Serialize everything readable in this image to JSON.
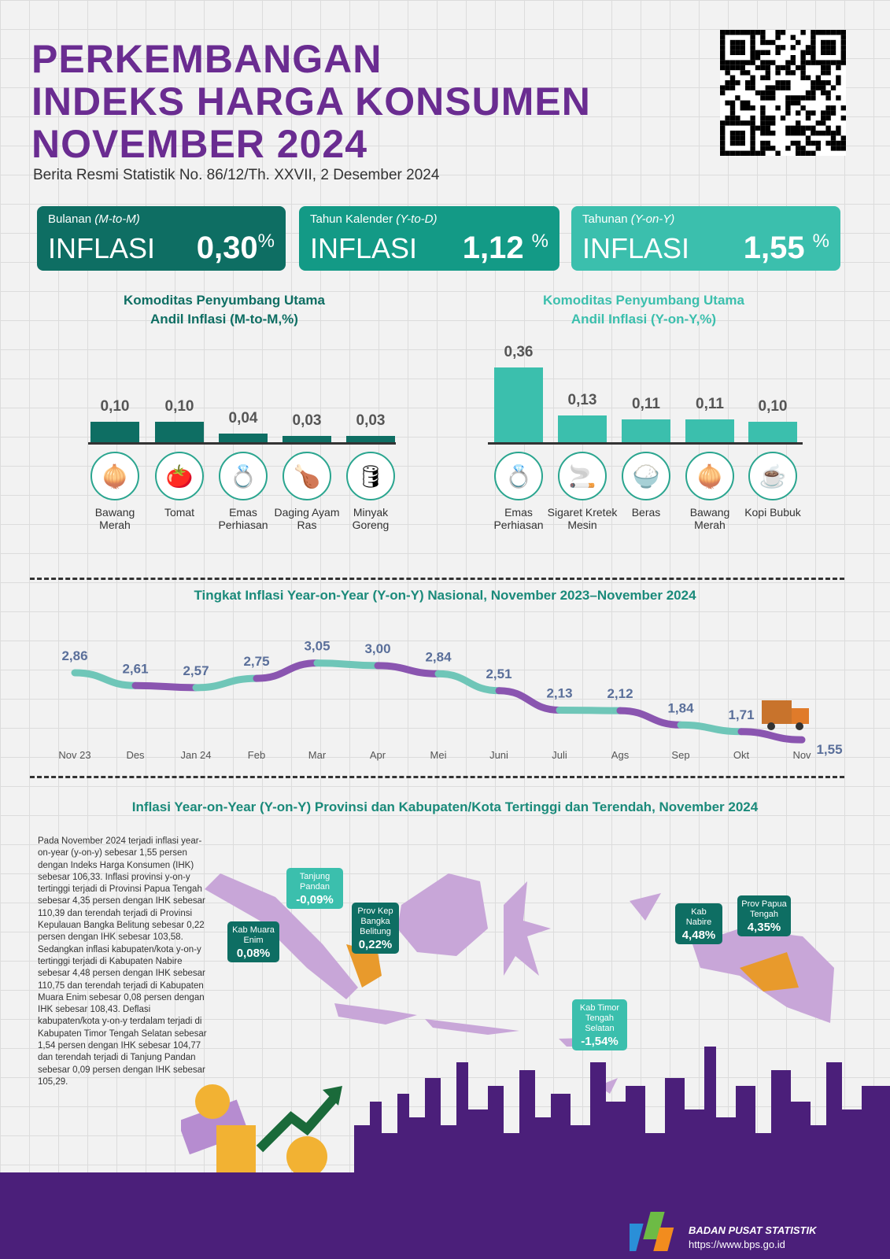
{
  "header": {
    "title_lines": [
      "PERKEMBANGAN",
      "INDEKS HARGA KONSUMEN",
      "NOVEMBER 2024"
    ],
    "subtitle": "Berita Resmi Statistik No. 86/12/Th. XXVII, 2 Desember 2024"
  },
  "cards": [
    {
      "label": "Bulanan",
      "label_italic": "(M-to-M)",
      "word": "INFLASI",
      "value": "0,30",
      "unit": "%",
      "color": "#0e6e63"
    },
    {
      "label": "Tahun Kalender",
      "label_italic": "(Y-to-D)",
      "word": "INFLASI",
      "value": "1,12",
      "unit": "%",
      "color": "#139a86"
    },
    {
      "label": "Tahunan",
      "label_italic": "(Y-on-Y)",
      "word": "INFLASI",
      "value": "1,55",
      "unit": "%",
      "color": "#3bbfad"
    }
  ],
  "chart_data": [
    {
      "type": "bar",
      "title": "Komoditas Penyumbang Utama",
      "title2": "Andil Inflasi (M-to-M,%)",
      "categories": [
        "Bawang Merah",
        "Tomat",
        "Emas Perhiasan",
        "Daging Ayam Ras",
        "Minyak Goreng"
      ],
      "labels": [
        "0,10",
        "0,10",
        "0,04",
        "0,03",
        "0,03"
      ],
      "values": [
        0.1,
        0.1,
        0.04,
        0.03,
        0.03
      ],
      "color": "#0e6e63",
      "icons": [
        "onion-icon",
        "tomato-icon",
        "jewelry-icon",
        "chicken-icon",
        "oil-icon"
      ]
    },
    {
      "type": "bar",
      "title": "Komoditas Penyumbang Utama",
      "title2": "Andil Inflasi (Y-on-Y,%)",
      "categories": [
        "Emas Perhiasan",
        "Sigaret Kretek Mesin",
        "Beras",
        "Bawang Merah",
        "Kopi Bubuk"
      ],
      "labels": [
        "0,36",
        "0,13",
        "0,11",
        "0,11",
        "0,10"
      ],
      "values": [
        0.36,
        0.13,
        0.11,
        0.11,
        0.1
      ],
      "color": "#3bbfad",
      "icons": [
        "jewelry-icon",
        "cigarette-icon",
        "rice-icon",
        "onion-icon",
        "coffee-icon"
      ]
    },
    {
      "type": "line",
      "title": "Tingkat Inflasi Year-on-Year (Y-on-Y) Nasional, November 2023–November 2024",
      "categories": [
        "Nov 23",
        "Des",
        "Jan 24",
        "Feb",
        "Mar",
        "Apr",
        "Mei",
        "Juni",
        "Juli",
        "Ags",
        "Sep",
        "Okt",
        "Nov"
      ],
      "labels": [
        "2,86",
        "2,61",
        "2,57",
        "2,75",
        "3,05",
        "3,00",
        "2,84",
        "2,51",
        "2,13",
        "2,12",
        "1,84",
        "1,71",
        "1,55"
      ],
      "values": [
        2.86,
        2.61,
        2.57,
        2.75,
        3.05,
        3.0,
        2.84,
        2.51,
        2.13,
        2.12,
        1.84,
        1.71,
        1.55
      ],
      "colors": [
        "#6fc6b8",
        "#8a55b0"
      ]
    }
  ],
  "map": {
    "title": "Inflasi Year-on-Year (Y-on-Y) Provinsi dan Kabupaten/Kota Tertinggi dan Terendah, November 2024",
    "paragraph": "Pada November 2024 terjadi inflasi year-on-year (y-on-y) sebesar 1,55 persen dengan Indeks Harga Konsumen (IHK) sebesar 106,33. Inflasi provinsi y-on-y tertinggi terjadi di Provinsi Papua Tengah sebesar 4,35 persen dengan IHK sebesar 110,39 dan terendah terjadi di Provinsi Kepulauan Bangka Belitung sebesar 0,22 persen dengan IHK sebesar 103,58. Sedangkan inflasi kabupaten/kota y-on-y tertinggi terjadi di Kabupaten Nabire sebesar 4,48 persen dengan IHK sebesar 110,75 dan terendah terjadi di Kabupaten Muara Enim sebesar 0,08 persen dengan IHK sebesar 108,43. Deflasi kabupaten/kota y-on-y terdalam terjadi di Kabupaten Timor Tengah Selatan sebesar 1,54 persen dengan IHK sebesar 104,77 dan terendah terjadi di Tanjung Pandan sebesar 0,09 persen dengan IHK sebesar 105,29.",
    "callouts": [
      {
        "name": "Tanjung Pandan",
        "value": "-0,09%"
      },
      {
        "name": "Kab Muara Enim",
        "value": "0,08%"
      },
      {
        "name": "Prov Kep Bangka Belitung",
        "value": "0,22%"
      },
      {
        "name": "Kab Nabire",
        "value": "4,48%"
      },
      {
        "name": "Prov Papua Tengah",
        "value": "4,35%"
      },
      {
        "name": "Kab Timor Tengah Selatan",
        "value": "-1,54%"
      }
    ]
  },
  "footer": {
    "org": "BADAN PUSAT STATISTIK",
    "url": "https://www.bps.go.id"
  }
}
